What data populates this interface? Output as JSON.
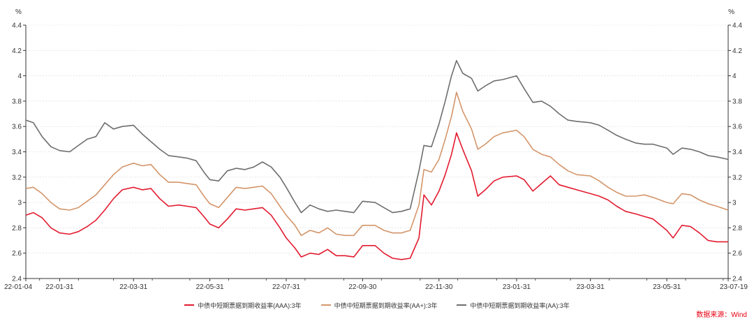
{
  "chart_data": {
    "type": "line",
    "title": "",
    "y_unit_left": "%",
    "y_unit_right": "%",
    "ylim": [
      2.4,
      4.4
    ],
    "yticks": [
      2.4,
      2.6,
      2.8,
      3,
      3.2,
      3.4,
      3.6,
      3.8,
      4,
      4.2,
      4.4
    ],
    "xlim": [
      "2022-01-04",
      "2023-07-19"
    ],
    "xticks": [
      {
        "date": "2022-01-04",
        "label": "22-01-04"
      },
      {
        "date": "2022-01-31",
        "label": "22-01-31"
      },
      {
        "date": "2022-03-31",
        "label": "22-03-31"
      },
      {
        "date": "2022-05-31",
        "label": "22-05-31"
      },
      {
        "date": "2022-07-31",
        "label": "22-07-31"
      },
      {
        "date": "2022-09-30",
        "label": "22-09-30"
      },
      {
        "date": "2022-11-30",
        "label": "22-11-30"
      },
      {
        "date": "2023-01-31",
        "label": "23-01-31"
      },
      {
        "date": "2023-03-31",
        "label": "23-03-31"
      },
      {
        "date": "2023-05-31",
        "label": "23-05-31"
      },
      {
        "date": "2023-07-19",
        "label": "23-07-19"
      }
    ],
    "grid": true,
    "legend_position": "bottom",
    "series": [
      {
        "name": "中债中短期票据到期收益率(AAA):3年",
        "color": "#e31a2f",
        "points": [
          [
            "2022-01-04",
            2.9
          ],
          [
            "2022-01-10",
            2.92
          ],
          [
            "2022-01-17",
            2.88
          ],
          [
            "2022-01-24",
            2.8
          ],
          [
            "2022-01-31",
            2.76
          ],
          [
            "2022-02-08",
            2.75
          ],
          [
            "2022-02-15",
            2.77
          ],
          [
            "2022-02-22",
            2.81
          ],
          [
            "2022-03-01",
            2.86
          ],
          [
            "2022-03-08",
            2.94
          ],
          [
            "2022-03-15",
            3.03
          ],
          [
            "2022-03-22",
            3.1
          ],
          [
            "2022-03-31",
            3.12
          ],
          [
            "2022-04-07",
            3.1
          ],
          [
            "2022-04-14",
            3.11
          ],
          [
            "2022-04-21",
            3.03
          ],
          [
            "2022-04-28",
            2.97
          ],
          [
            "2022-05-06",
            2.98
          ],
          [
            "2022-05-13",
            2.97
          ],
          [
            "2022-05-20",
            2.96
          ],
          [
            "2022-05-27",
            2.88
          ],
          [
            "2022-05-31",
            2.83
          ],
          [
            "2022-06-07",
            2.8
          ],
          [
            "2022-06-14",
            2.87
          ],
          [
            "2022-06-21",
            2.95
          ],
          [
            "2022-06-28",
            2.94
          ],
          [
            "2022-07-05",
            2.95
          ],
          [
            "2022-07-12",
            2.96
          ],
          [
            "2022-07-19",
            2.9
          ],
          [
            "2022-07-26",
            2.8
          ],
          [
            "2022-07-31",
            2.72
          ],
          [
            "2022-08-07",
            2.64
          ],
          [
            "2022-08-12",
            2.57
          ],
          [
            "2022-08-19",
            2.6
          ],
          [
            "2022-08-26",
            2.59
          ],
          [
            "2022-09-02",
            2.63
          ],
          [
            "2022-09-09",
            2.58
          ],
          [
            "2022-09-16",
            2.58
          ],
          [
            "2022-09-23",
            2.57
          ],
          [
            "2022-09-30",
            2.66
          ],
          [
            "2022-10-10",
            2.66
          ],
          [
            "2022-10-17",
            2.6
          ],
          [
            "2022-10-24",
            2.56
          ],
          [
            "2022-10-31",
            2.55
          ],
          [
            "2022-11-07",
            2.56
          ],
          [
            "2022-11-14",
            2.72
          ],
          [
            "2022-11-18",
            3.06
          ],
          [
            "2022-11-24",
            2.98
          ],
          [
            "2022-11-30",
            3.09
          ],
          [
            "2022-12-05",
            3.22
          ],
          [
            "2022-12-10",
            3.38
          ],
          [
            "2022-12-14",
            3.55
          ],
          [
            "2022-12-19",
            3.42
          ],
          [
            "2022-12-26",
            3.25
          ],
          [
            "2022-12-31",
            3.05
          ],
          [
            "2023-01-06",
            3.1
          ],
          [
            "2023-01-13",
            3.17
          ],
          [
            "2023-01-20",
            3.2
          ],
          [
            "2023-01-31",
            3.21
          ],
          [
            "2023-02-06",
            3.18
          ],
          [
            "2023-02-13",
            3.09
          ],
          [
            "2023-02-20",
            3.15
          ],
          [
            "2023-02-27",
            3.21
          ],
          [
            "2023-03-06",
            3.14
          ],
          [
            "2023-03-13",
            3.12
          ],
          [
            "2023-03-20",
            3.1
          ],
          [
            "2023-03-31",
            3.07
          ],
          [
            "2023-04-07",
            3.05
          ],
          [
            "2023-04-14",
            3.02
          ],
          [
            "2023-04-21",
            2.97
          ],
          [
            "2023-04-28",
            2.93
          ],
          [
            "2023-05-06",
            2.91
          ],
          [
            "2023-05-13",
            2.89
          ],
          [
            "2023-05-20",
            2.87
          ],
          [
            "2023-05-31",
            2.78
          ],
          [
            "2023-06-05",
            2.72
          ],
          [
            "2023-06-12",
            2.82
          ],
          [
            "2023-06-19",
            2.81
          ],
          [
            "2023-06-26",
            2.76
          ],
          [
            "2023-07-03",
            2.7
          ],
          [
            "2023-07-10",
            2.69
          ],
          [
            "2023-07-19",
            2.69
          ]
        ]
      },
      {
        "name": "中债中短期票据到期收益率(AA+):3年",
        "color": "#d4956a",
        "points": [
          [
            "2022-01-04",
            3.11
          ],
          [
            "2022-01-10",
            3.12
          ],
          [
            "2022-01-17",
            3.07
          ],
          [
            "2022-01-24",
            3.0
          ],
          [
            "2022-01-31",
            2.95
          ],
          [
            "2022-02-08",
            2.94
          ],
          [
            "2022-02-15",
            2.96
          ],
          [
            "2022-02-22",
            3.01
          ],
          [
            "2022-03-01",
            3.06
          ],
          [
            "2022-03-08",
            3.14
          ],
          [
            "2022-03-15",
            3.22
          ],
          [
            "2022-03-22",
            3.28
          ],
          [
            "2022-03-31",
            3.31
          ],
          [
            "2022-04-07",
            3.29
          ],
          [
            "2022-04-14",
            3.3
          ],
          [
            "2022-04-21",
            3.22
          ],
          [
            "2022-04-28",
            3.16
          ],
          [
            "2022-05-06",
            3.16
          ],
          [
            "2022-05-13",
            3.15
          ],
          [
            "2022-05-20",
            3.14
          ],
          [
            "2022-05-27",
            3.04
          ],
          [
            "2022-05-31",
            2.99
          ],
          [
            "2022-06-07",
            2.96
          ],
          [
            "2022-06-14",
            3.04
          ],
          [
            "2022-06-21",
            3.12
          ],
          [
            "2022-06-28",
            3.11
          ],
          [
            "2022-07-05",
            3.12
          ],
          [
            "2022-07-12",
            3.13
          ],
          [
            "2022-07-19",
            3.07
          ],
          [
            "2022-07-26",
            2.97
          ],
          [
            "2022-07-31",
            2.9
          ],
          [
            "2022-08-07",
            2.82
          ],
          [
            "2022-08-12",
            2.74
          ],
          [
            "2022-08-19",
            2.78
          ],
          [
            "2022-08-26",
            2.76
          ],
          [
            "2022-09-02",
            2.8
          ],
          [
            "2022-09-09",
            2.75
          ],
          [
            "2022-09-16",
            2.74
          ],
          [
            "2022-09-23",
            2.74
          ],
          [
            "2022-09-30",
            2.82
          ],
          [
            "2022-10-10",
            2.82
          ],
          [
            "2022-10-17",
            2.78
          ],
          [
            "2022-10-24",
            2.76
          ],
          [
            "2022-10-31",
            2.76
          ],
          [
            "2022-11-07",
            2.78
          ],
          [
            "2022-11-14",
            2.98
          ],
          [
            "2022-11-18",
            3.26
          ],
          [
            "2022-11-24",
            3.24
          ],
          [
            "2022-11-30",
            3.34
          ],
          [
            "2022-12-05",
            3.5
          ],
          [
            "2022-12-10",
            3.68
          ],
          [
            "2022-12-14",
            3.87
          ],
          [
            "2022-12-19",
            3.72
          ],
          [
            "2022-12-26",
            3.58
          ],
          [
            "2022-12-31",
            3.42
          ],
          [
            "2023-01-06",
            3.46
          ],
          [
            "2023-01-13",
            3.52
          ],
          [
            "2023-01-20",
            3.55
          ],
          [
            "2023-01-31",
            3.57
          ],
          [
            "2023-02-06",
            3.52
          ],
          [
            "2023-02-13",
            3.42
          ],
          [
            "2023-02-20",
            3.38
          ],
          [
            "2023-02-27",
            3.36
          ],
          [
            "2023-03-06",
            3.3
          ],
          [
            "2023-03-13",
            3.25
          ],
          [
            "2023-03-20",
            3.22
          ],
          [
            "2023-03-31",
            3.21
          ],
          [
            "2023-04-07",
            3.17
          ],
          [
            "2023-04-14",
            3.12
          ],
          [
            "2023-04-21",
            3.08
          ],
          [
            "2023-04-28",
            3.05
          ],
          [
            "2023-05-06",
            3.05
          ],
          [
            "2023-05-13",
            3.06
          ],
          [
            "2023-05-20",
            3.04
          ],
          [
            "2023-05-31",
            3.0
          ],
          [
            "2023-06-05",
            2.99
          ],
          [
            "2023-06-12",
            3.07
          ],
          [
            "2023-06-19",
            3.06
          ],
          [
            "2023-06-26",
            3.02
          ],
          [
            "2023-07-03",
            2.99
          ],
          [
            "2023-07-10",
            2.97
          ],
          [
            "2023-07-19",
            2.94
          ]
        ]
      },
      {
        "name": "中债中短期票据到期收益率(AA):3年",
        "color": "#6e6e6e",
        "points": [
          [
            "2022-01-04",
            3.65
          ],
          [
            "2022-01-10",
            3.63
          ],
          [
            "2022-01-17",
            3.52
          ],
          [
            "2022-01-24",
            3.44
          ],
          [
            "2022-01-31",
            3.41
          ],
          [
            "2022-02-08",
            3.4
          ],
          [
            "2022-02-15",
            3.45
          ],
          [
            "2022-02-22",
            3.5
          ],
          [
            "2022-03-01",
            3.52
          ],
          [
            "2022-03-08",
            3.63
          ],
          [
            "2022-03-15",
            3.58
          ],
          [
            "2022-03-22",
            3.6
          ],
          [
            "2022-03-31",
            3.61
          ],
          [
            "2022-04-07",
            3.54
          ],
          [
            "2022-04-14",
            3.48
          ],
          [
            "2022-04-21",
            3.42
          ],
          [
            "2022-04-28",
            3.37
          ],
          [
            "2022-05-06",
            3.36
          ],
          [
            "2022-05-13",
            3.35
          ],
          [
            "2022-05-20",
            3.33
          ],
          [
            "2022-05-27",
            3.23
          ],
          [
            "2022-05-31",
            3.18
          ],
          [
            "2022-06-07",
            3.17
          ],
          [
            "2022-06-14",
            3.25
          ],
          [
            "2022-06-21",
            3.27
          ],
          [
            "2022-06-28",
            3.26
          ],
          [
            "2022-07-05",
            3.28
          ],
          [
            "2022-07-12",
            3.32
          ],
          [
            "2022-07-19",
            3.28
          ],
          [
            "2022-07-26",
            3.2
          ],
          [
            "2022-07-31",
            3.12
          ],
          [
            "2022-08-07",
            3.0
          ],
          [
            "2022-08-12",
            2.92
          ],
          [
            "2022-08-19",
            2.98
          ],
          [
            "2022-08-26",
            2.95
          ],
          [
            "2022-09-02",
            2.93
          ],
          [
            "2022-09-09",
            2.94
          ],
          [
            "2022-09-16",
            2.93
          ],
          [
            "2022-09-23",
            2.92
          ],
          [
            "2022-09-30",
            3.01
          ],
          [
            "2022-10-10",
            3.0
          ],
          [
            "2022-10-17",
            2.96
          ],
          [
            "2022-10-24",
            2.92
          ],
          [
            "2022-10-31",
            2.93
          ],
          [
            "2022-11-07",
            2.95
          ],
          [
            "2022-11-14",
            3.25
          ],
          [
            "2022-11-18",
            3.45
          ],
          [
            "2022-11-24",
            3.44
          ],
          [
            "2022-11-30",
            3.62
          ],
          [
            "2022-12-05",
            3.8
          ],
          [
            "2022-12-10",
            4.0
          ],
          [
            "2022-12-14",
            4.12
          ],
          [
            "2022-12-19",
            4.02
          ],
          [
            "2022-12-26",
            3.98
          ],
          [
            "2022-12-31",
            3.88
          ],
          [
            "2023-01-06",
            3.92
          ],
          [
            "2023-01-13",
            3.96
          ],
          [
            "2023-01-20",
            3.97
          ],
          [
            "2023-01-31",
            4.0
          ],
          [
            "2023-02-06",
            3.9
          ],
          [
            "2023-02-13",
            3.79
          ],
          [
            "2023-02-20",
            3.8
          ],
          [
            "2023-02-27",
            3.76
          ],
          [
            "2023-03-06",
            3.7
          ],
          [
            "2023-03-13",
            3.65
          ],
          [
            "2023-03-20",
            3.64
          ],
          [
            "2023-03-31",
            3.63
          ],
          [
            "2023-04-07",
            3.61
          ],
          [
            "2023-04-14",
            3.57
          ],
          [
            "2023-04-21",
            3.53
          ],
          [
            "2023-04-28",
            3.5
          ],
          [
            "2023-05-06",
            3.47
          ],
          [
            "2023-05-13",
            3.46
          ],
          [
            "2023-05-20",
            3.46
          ],
          [
            "2023-05-31",
            3.43
          ],
          [
            "2023-06-05",
            3.38
          ],
          [
            "2023-06-12",
            3.43
          ],
          [
            "2023-06-19",
            3.42
          ],
          [
            "2023-06-26",
            3.4
          ],
          [
            "2023-07-03",
            3.37
          ],
          [
            "2023-07-10",
            3.36
          ],
          [
            "2023-07-19",
            3.34
          ]
        ]
      }
    ]
  },
  "source": "数据来源：Wind"
}
